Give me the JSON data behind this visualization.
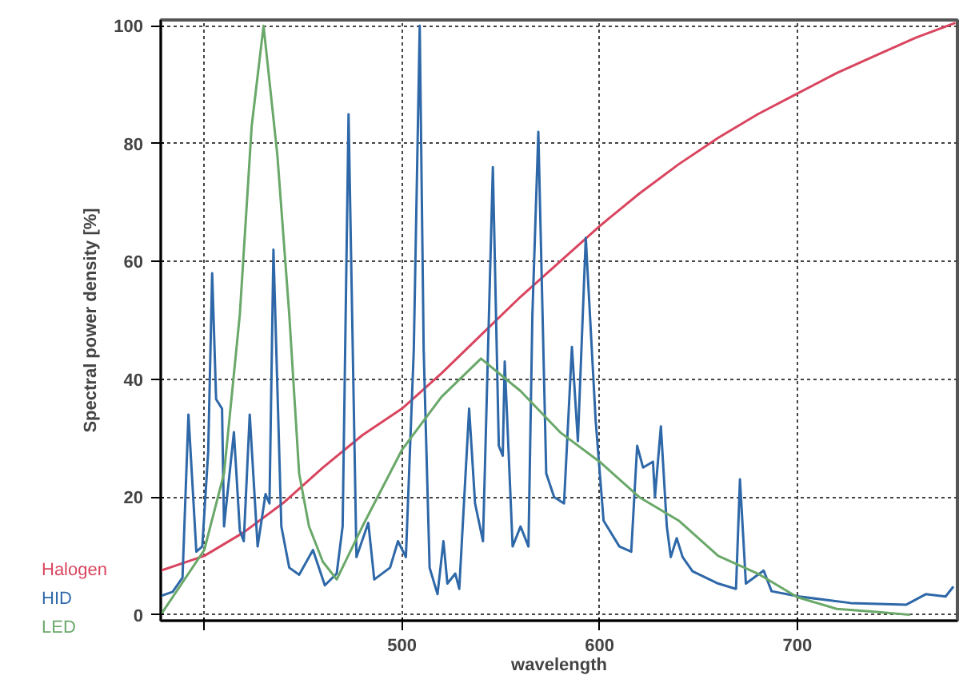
{
  "chart_data": {
    "type": "line",
    "xlabel": "wavelength",
    "ylabel": "Spectral power density [%]",
    "xlim": [
      378,
      781
    ],
    "ylim": [
      -1,
      101
    ],
    "xticks": [
      {
        "value": 400,
        "label": null
      },
      500,
      600,
      700
    ],
    "yticks": [
      0,
      20,
      40,
      60,
      80,
      100
    ],
    "grid": true,
    "legend": "bottom left",
    "line_style": "solid",
    "series": [
      {
        "name": "Halogen",
        "color": "#d9455f",
        "x": [
          378,
          400,
          420,
          440,
          460,
          480,
          500,
          520,
          540,
          560,
          580,
          600,
          620,
          640,
          660,
          680,
          700,
          720,
          740,
          760,
          780
        ],
        "values": [
          7.5,
          10,
          14,
          19,
          25,
          30.5,
          35,
          41,
          47.5,
          54,
          60,
          66,
          71.5,
          76.5,
          81,
          85,
          88.5,
          92,
          95,
          98,
          100.5
        ]
      },
      {
        "name": "HID",
        "color": "#2e68a8",
        "x": [
          378,
          384,
          389,
          392,
          396,
          399,
          402,
          404,
          406,
          409,
          410,
          415,
          418,
          420,
          423,
          427,
          431,
          433,
          435,
          439,
          443,
          448,
          455,
          461,
          467,
          470,
          473,
          477,
          483,
          486,
          494,
          498,
          502,
          506,
          509,
          511,
          514,
          518,
          521,
          523,
          527,
          529,
          534,
          537,
          541,
          546,
          549,
          551,
          552,
          556,
          560,
          564,
          566,
          569,
          573,
          577,
          582,
          586,
          589,
          593,
          598,
          602,
          610,
          616,
          619,
          622,
          627,
          628,
          631,
          634,
          636,
          639,
          642,
          647,
          660,
          669,
          671,
          674,
          683,
          687,
          701,
          727,
          755,
          765,
          775,
          779
        ],
        "values": [
          3.2,
          3.9,
          6.3,
          34,
          10.7,
          11.6,
          27.7,
          58,
          36.6,
          35,
          15,
          31,
          14.3,
          12.5,
          34,
          11.6,
          20.5,
          18.9,
          62,
          15,
          8,
          6.8,
          11,
          5,
          7,
          15,
          85,
          9.8,
          15.6,
          6,
          8,
          12.5,
          9.8,
          45,
          100,
          45,
          8,
          3.5,
          12.5,
          5.3,
          7,
          4.4,
          35,
          18.9,
          12.5,
          76,
          28.7,
          27,
          43,
          11.6,
          15,
          11.6,
          51,
          82,
          24,
          20,
          18.9,
          45.5,
          29.5,
          64,
          33,
          16,
          11.6,
          10.7,
          28.7,
          25,
          26,
          20,
          32,
          15,
          9.8,
          13,
          9.8,
          7.4,
          5.3,
          4.4,
          23,
          5.3,
          7.5,
          4,
          3.1,
          2,
          1.7,
          3.5,
          3.1,
          4.8
        ]
      },
      {
        "name": "LED",
        "color": "#6aa86a",
        "x": [
          378,
          400,
          410,
          418,
          424,
          430,
          437,
          443,
          448,
          453,
          460,
          467,
          480,
          500,
          520,
          540,
          560,
          580,
          600,
          620,
          640,
          660,
          680,
          700,
          720,
          740,
          757
        ],
        "values": [
          0,
          11,
          24,
          51,
          83,
          100,
          78,
          51,
          24,
          15,
          9,
          6,
          15,
          28,
          37,
          43.5,
          38,
          31,
          26,
          20,
          16,
          10,
          7,
          3,
          1,
          0.5,
          0
        ]
      }
    ]
  }
}
